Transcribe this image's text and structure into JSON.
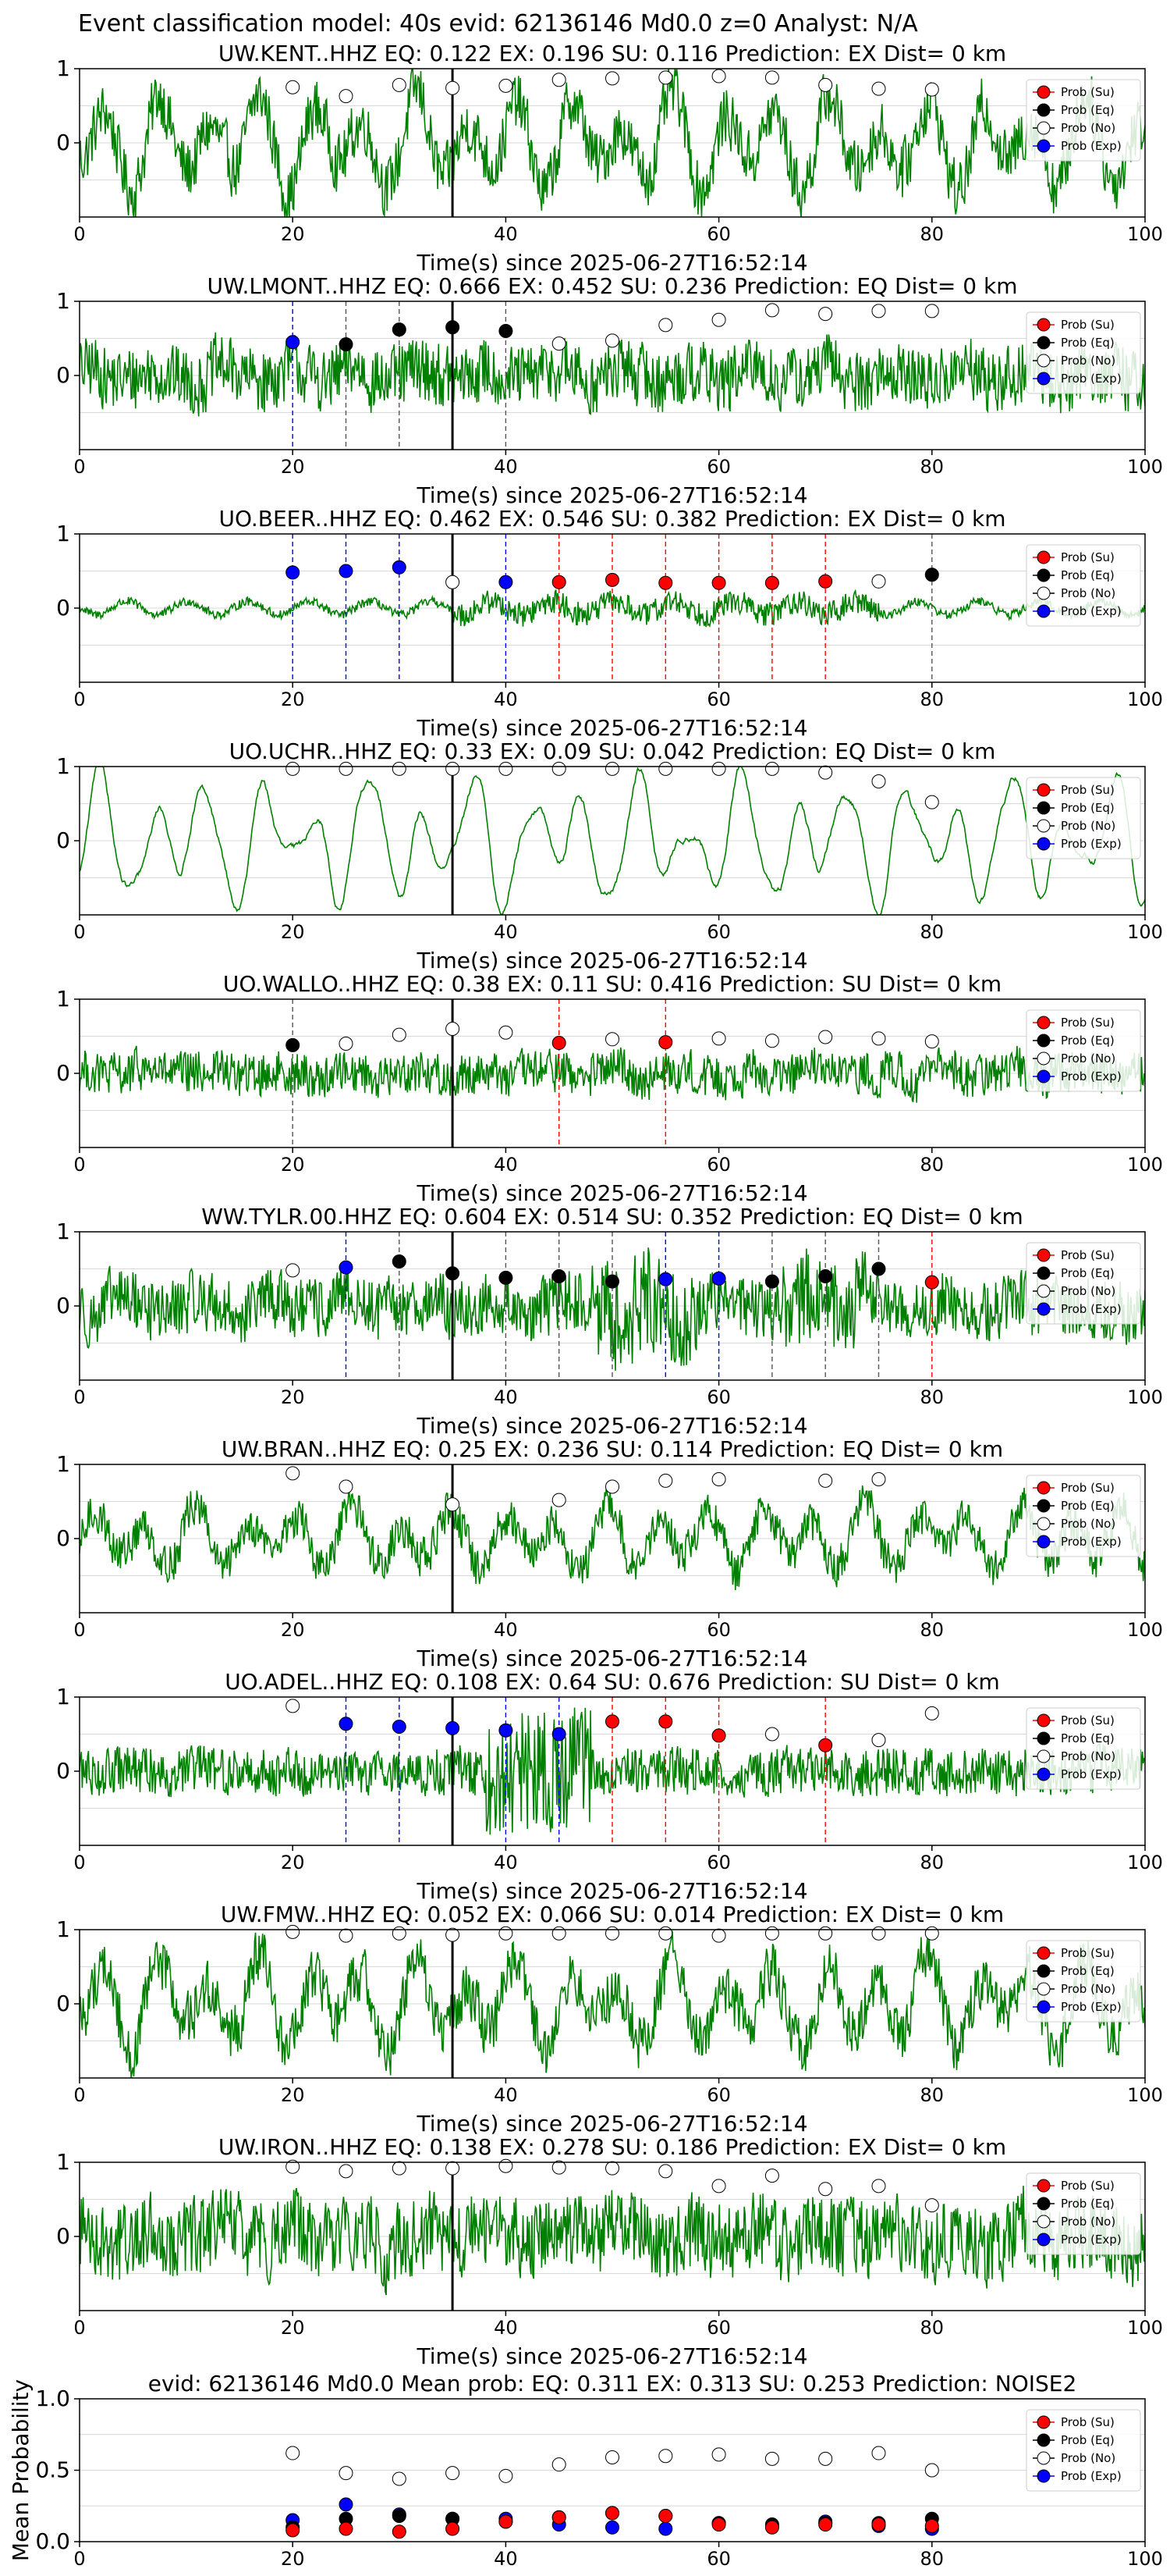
{
  "figure": {
    "suptitle": "Event classification model: 40s evid: 62136146 Md0.0 z=0 Analyst: N/A"
  },
  "legend_labels": [
    "Prob (Su)",
    "Prob (Eq)",
    "Prob (No)",
    "Prob (Exp)"
  ],
  "class_colors": {
    "su": "#ff0000",
    "eq": "#000000",
    "no": "#ffffff",
    "exp": "#0000ff"
  },
  "colors": {
    "waveform": "#008000",
    "pick_line": "#000000",
    "grid": "#d9d9d9"
  },
  "chart_data": [
    {
      "type": "line",
      "title": "UW.KENT..HHZ   EQ: 0.122  EX: 0.196  SU: 0.116   Prediction: EX    Dist= 0 km",
      "xlabel": "Time(s) since 2025-06-27T16:52:14",
      "xlim": [
        0,
        100
      ],
      "ylim": [
        -1,
        1
      ],
      "xticks": [
        0,
        20,
        40,
        60,
        80,
        100
      ],
      "yticks": [
        0,
        1
      ],
      "pick_time": 35,
      "waveform": {
        "style": "mixed",
        "amplitude": 0.8
      },
      "points": [
        {
          "x": 20,
          "y": 0.75,
          "c": "no"
        },
        {
          "x": 25,
          "y": 0.63,
          "c": "no"
        },
        {
          "x": 30,
          "y": 0.78,
          "c": "no"
        },
        {
          "x": 35,
          "y": 0.74,
          "c": "no"
        },
        {
          "x": 40,
          "y": 0.77,
          "c": "no"
        },
        {
          "x": 45,
          "y": 0.85,
          "c": "no"
        },
        {
          "x": 50,
          "y": 0.87,
          "c": "no"
        },
        {
          "x": 55,
          "y": 0.88,
          "c": "no"
        },
        {
          "x": 60,
          "y": 0.9,
          "c": "no"
        },
        {
          "x": 65,
          "y": 0.88,
          "c": "no"
        },
        {
          "x": 70,
          "y": 0.78,
          "c": "no"
        },
        {
          "x": 75,
          "y": 0.73,
          "c": "no"
        },
        {
          "x": 80,
          "y": 0.72,
          "c": "no"
        }
      ]
    },
    {
      "type": "line",
      "title": "UW.LMONT..HHZ   EQ: 0.666  EX: 0.452  SU: 0.236   Prediction: EQ    Dist= 0 km",
      "xlabel": "Time(s) since 2025-06-27T16:52:14",
      "xlim": [
        0,
        100
      ],
      "ylim": [
        -1,
        1
      ],
      "xticks": [
        0,
        20,
        40,
        60,
        80,
        100
      ],
      "yticks": [
        0,
        1
      ],
      "pick_time": 35,
      "waveform": {
        "style": "noisy",
        "amplitude": 0.45
      },
      "points": [
        {
          "x": 20,
          "y": 0.45,
          "c": "exp"
        },
        {
          "x": 25,
          "y": 0.42,
          "c": "eq"
        },
        {
          "x": 30,
          "y": 0.62,
          "c": "eq"
        },
        {
          "x": 35,
          "y": 0.65,
          "c": "eq"
        },
        {
          "x": 40,
          "y": 0.6,
          "c": "eq"
        },
        {
          "x": 45,
          "y": 0.43,
          "c": "no"
        },
        {
          "x": 50,
          "y": 0.47,
          "c": "no"
        },
        {
          "x": 55,
          "y": 0.68,
          "c": "no"
        },
        {
          "x": 60,
          "y": 0.75,
          "c": "no"
        },
        {
          "x": 65,
          "y": 0.88,
          "c": "no"
        },
        {
          "x": 70,
          "y": 0.83,
          "c": "no"
        },
        {
          "x": 75,
          "y": 0.87,
          "c": "no"
        },
        {
          "x": 80,
          "y": 0.87,
          "c": "no"
        }
      ]
    },
    {
      "type": "line",
      "title": "UO.BEER..HHZ   EQ: 0.462  EX: 0.546  SU: 0.382   Prediction: EX    Dist= 0 km",
      "xlabel": "Time(s) since 2025-06-27T16:52:14",
      "xlim": [
        0,
        100
      ],
      "ylim": [
        -1,
        1
      ],
      "xticks": [
        0,
        20,
        40,
        60,
        80,
        100
      ],
      "yticks": [
        0,
        1
      ],
      "pick_time": 35,
      "waveform": {
        "style": "quiet",
        "amplitude": 0.25
      },
      "points": [
        {
          "x": 20,
          "y": 0.48,
          "c": "exp"
        },
        {
          "x": 25,
          "y": 0.5,
          "c": "exp"
        },
        {
          "x": 30,
          "y": 0.55,
          "c": "exp"
        },
        {
          "x": 35,
          "y": 0.35,
          "c": "no"
        },
        {
          "x": 40,
          "y": 0.35,
          "c": "exp"
        },
        {
          "x": 45,
          "y": 0.35,
          "c": "su"
        },
        {
          "x": 50,
          "y": 0.38,
          "c": "su"
        },
        {
          "x": 55,
          "y": 0.34,
          "c": "su"
        },
        {
          "x": 60,
          "y": 0.34,
          "c": "su"
        },
        {
          "x": 65,
          "y": 0.34,
          "c": "su"
        },
        {
          "x": 70,
          "y": 0.36,
          "c": "su"
        },
        {
          "x": 75,
          "y": 0.36,
          "c": "no"
        },
        {
          "x": 80,
          "y": 0.45,
          "c": "eq"
        }
      ]
    },
    {
      "type": "line",
      "title": "UO.UCHR..HHZ   EQ: 0.33  EX: 0.09  SU: 0.042   Prediction: EQ    Dist= 0 km",
      "xlabel": "Time(s) since 2025-06-27T16:52:14",
      "xlim": [
        0,
        100
      ],
      "ylim": [
        -1,
        1
      ],
      "xticks": [
        0,
        20,
        40,
        60,
        80,
        100
      ],
      "yticks": [
        0,
        1
      ],
      "pick_time": 35,
      "waveform": {
        "style": "smooth",
        "amplitude": 0.85
      },
      "points": [
        {
          "x": 20,
          "y": 0.97,
          "c": "no"
        },
        {
          "x": 25,
          "y": 0.97,
          "c": "no"
        },
        {
          "x": 30,
          "y": 0.97,
          "c": "no"
        },
        {
          "x": 35,
          "y": 0.97,
          "c": "no"
        },
        {
          "x": 40,
          "y": 0.97,
          "c": "no"
        },
        {
          "x": 45,
          "y": 0.97,
          "c": "no"
        },
        {
          "x": 50,
          "y": 0.97,
          "c": "no"
        },
        {
          "x": 55,
          "y": 0.97,
          "c": "no"
        },
        {
          "x": 60,
          "y": 0.97,
          "c": "no"
        },
        {
          "x": 65,
          "y": 0.97,
          "c": "no"
        },
        {
          "x": 70,
          "y": 0.92,
          "c": "no"
        },
        {
          "x": 75,
          "y": 0.8,
          "c": "no"
        },
        {
          "x": 80,
          "y": 0.52,
          "c": "no"
        }
      ]
    },
    {
      "type": "line",
      "title": "UO.WALLO..HHZ   EQ: 0.38  EX: 0.11  SU: 0.416   Prediction: SU    Dist= 0 km",
      "xlabel": "Time(s) since 2025-06-27T16:52:14",
      "xlim": [
        0,
        100
      ],
      "ylim": [
        -1,
        1
      ],
      "xticks": [
        0,
        20,
        40,
        60,
        80,
        100
      ],
      "yticks": [
        0,
        1
      ],
      "pick_time": 35,
      "waveform": {
        "style": "noisy",
        "amplitude": 0.3
      },
      "points": [
        {
          "x": 20,
          "y": 0.38,
          "c": "eq"
        },
        {
          "x": 25,
          "y": 0.4,
          "c": "no"
        },
        {
          "x": 30,
          "y": 0.52,
          "c": "no"
        },
        {
          "x": 35,
          "y": 0.6,
          "c": "no"
        },
        {
          "x": 40,
          "y": 0.55,
          "c": "no"
        },
        {
          "x": 45,
          "y": 0.41,
          "c": "su"
        },
        {
          "x": 50,
          "y": 0.46,
          "c": "no"
        },
        {
          "x": 55,
          "y": 0.42,
          "c": "su"
        },
        {
          "x": 60,
          "y": 0.47,
          "c": "no"
        },
        {
          "x": 65,
          "y": 0.44,
          "c": "no"
        },
        {
          "x": 70,
          "y": 0.49,
          "c": "no"
        },
        {
          "x": 75,
          "y": 0.47,
          "c": "no"
        },
        {
          "x": 80,
          "y": 0.43,
          "c": "no"
        }
      ]
    },
    {
      "type": "line",
      "title": "WW.TYLR.00.HHZ   EQ: 0.604  EX: 0.514  SU: 0.352   Prediction: EQ    Dist= 0 km",
      "xlabel": "Time(s) since 2025-06-27T16:52:14",
      "xlim": [
        0,
        100
      ],
      "ylim": [
        -1,
        1
      ],
      "xticks": [
        0,
        20,
        40,
        60,
        80,
        100
      ],
      "yticks": [
        0,
        1
      ],
      "pick_time": 35,
      "waveform": {
        "style": "bursty",
        "amplitude": 0.5
      },
      "points": [
        {
          "x": 20,
          "y": 0.48,
          "c": "no"
        },
        {
          "x": 25,
          "y": 0.52,
          "c": "exp"
        },
        {
          "x": 30,
          "y": 0.6,
          "c": "eq"
        },
        {
          "x": 35,
          "y": 0.44,
          "c": "eq"
        },
        {
          "x": 40,
          "y": 0.38,
          "c": "eq"
        },
        {
          "x": 45,
          "y": 0.4,
          "c": "eq"
        },
        {
          "x": 50,
          "y": 0.33,
          "c": "eq"
        },
        {
          "x": 55,
          "y": 0.36,
          "c": "exp"
        },
        {
          "x": 60,
          "y": 0.37,
          "c": "exp"
        },
        {
          "x": 65,
          "y": 0.33,
          "c": "eq"
        },
        {
          "x": 70,
          "y": 0.4,
          "c": "eq"
        },
        {
          "x": 75,
          "y": 0.5,
          "c": "eq"
        },
        {
          "x": 80,
          "y": 0.32,
          "c": "su"
        }
      ]
    },
    {
      "type": "line",
      "title": "UW.BRAN..HHZ   EQ: 0.25  EX: 0.236  SU: 0.114   Prediction: EQ    Dist= 0 km",
      "xlabel": "Time(s) since 2025-06-27T16:52:14",
      "xlim": [
        0,
        100
      ],
      "ylim": [
        -1,
        1
      ],
      "xticks": [
        0,
        20,
        40,
        60,
        80,
        100
      ],
      "yticks": [
        0,
        1
      ],
      "pick_time": 35,
      "waveform": {
        "style": "mixed",
        "amplitude": 0.55
      },
      "points": [
        {
          "x": 20,
          "y": 0.88,
          "c": "no"
        },
        {
          "x": 25,
          "y": 0.7,
          "c": "no"
        },
        {
          "x": 35,
          "y": 0.46,
          "c": "no"
        },
        {
          "x": 45,
          "y": 0.52,
          "c": "no"
        },
        {
          "x": 50,
          "y": 0.7,
          "c": "no"
        },
        {
          "x": 55,
          "y": 0.78,
          "c": "no"
        },
        {
          "x": 60,
          "y": 0.8,
          "c": "no"
        },
        {
          "x": 70,
          "y": 0.78,
          "c": "no"
        },
        {
          "x": 75,
          "y": 0.8,
          "c": "no"
        }
      ]
    },
    {
      "type": "line",
      "title": "UO.ADEL..HHZ   EQ: 0.108  EX: 0.64  SU: 0.676   Prediction: SU    Dist= 0 km",
      "xlabel": "Time(s) since 2025-06-27T16:52:14",
      "xlim": [
        0,
        100
      ],
      "ylim": [
        -1,
        1
      ],
      "xticks": [
        0,
        20,
        40,
        60,
        80,
        100
      ],
      "yticks": [
        0,
        1
      ],
      "pick_time": 35,
      "waveform": {
        "style": "burst-center",
        "amplitude": 0.35
      },
      "points": [
        {
          "x": 20,
          "y": 0.88,
          "c": "no"
        },
        {
          "x": 25,
          "y": 0.64,
          "c": "exp"
        },
        {
          "x": 30,
          "y": 0.6,
          "c": "exp"
        },
        {
          "x": 35,
          "y": 0.58,
          "c": "exp"
        },
        {
          "x": 40,
          "y": 0.55,
          "c": "exp"
        },
        {
          "x": 45,
          "y": 0.5,
          "c": "exp"
        },
        {
          "x": 50,
          "y": 0.67,
          "c": "su"
        },
        {
          "x": 55,
          "y": 0.67,
          "c": "su"
        },
        {
          "x": 60,
          "y": 0.48,
          "c": "su"
        },
        {
          "x": 65,
          "y": 0.5,
          "c": "no"
        },
        {
          "x": 70,
          "y": 0.35,
          "c": "su"
        },
        {
          "x": 75,
          "y": 0.42,
          "c": "no"
        },
        {
          "x": 80,
          "y": 0.78,
          "c": "no"
        }
      ]
    },
    {
      "type": "line",
      "title": "UW.FMW..HHZ   EQ: 0.052  EX: 0.066  SU: 0.014   Prediction: EX    Dist= 0 km",
      "xlabel": "Time(s) since 2025-06-27T16:52:14",
      "xlim": [
        0,
        100
      ],
      "ylim": [
        -1,
        1
      ],
      "xticks": [
        0,
        20,
        40,
        60,
        80,
        100
      ],
      "yticks": [
        0,
        1
      ],
      "pick_time": 35,
      "waveform": {
        "style": "mixed",
        "amplitude": 0.75
      },
      "points": [
        {
          "x": 20,
          "y": 0.97,
          "c": "no"
        },
        {
          "x": 25,
          "y": 0.92,
          "c": "no"
        },
        {
          "x": 30,
          "y": 0.95,
          "c": "no"
        },
        {
          "x": 35,
          "y": 0.93,
          "c": "no"
        },
        {
          "x": 40,
          "y": 0.95,
          "c": "no"
        },
        {
          "x": 45,
          "y": 0.95,
          "c": "no"
        },
        {
          "x": 50,
          "y": 0.95,
          "c": "no"
        },
        {
          "x": 55,
          "y": 0.95,
          "c": "no"
        },
        {
          "x": 60,
          "y": 0.92,
          "c": "no"
        },
        {
          "x": 65,
          "y": 0.95,
          "c": "no"
        },
        {
          "x": 70,
          "y": 0.95,
          "c": "no"
        },
        {
          "x": 75,
          "y": 0.95,
          "c": "no"
        },
        {
          "x": 80,
          "y": 0.95,
          "c": "no"
        }
      ]
    },
    {
      "type": "line",
      "title": "UW.IRON..HHZ   EQ: 0.138  EX: 0.278  SU: 0.186   Prediction: EX    Dist= 0 km",
      "xlabel": "Time(s) since 2025-06-27T16:52:14",
      "xlim": [
        0,
        100
      ],
      "ylim": [
        -1,
        1
      ],
      "xticks": [
        0,
        20,
        40,
        60,
        80,
        100
      ],
      "yticks": [
        0,
        1
      ],
      "pick_time": 35,
      "waveform": {
        "style": "noisy",
        "amplitude": 0.55
      },
      "points": [
        {
          "x": 20,
          "y": 0.94,
          "c": "no"
        },
        {
          "x": 25,
          "y": 0.88,
          "c": "no"
        },
        {
          "x": 30,
          "y": 0.92,
          "c": "no"
        },
        {
          "x": 35,
          "y": 0.92,
          "c": "no"
        },
        {
          "x": 40,
          "y": 0.95,
          "c": "no"
        },
        {
          "x": 45,
          "y": 0.93,
          "c": "no"
        },
        {
          "x": 50,
          "y": 0.92,
          "c": "no"
        },
        {
          "x": 55,
          "y": 0.88,
          "c": "no"
        },
        {
          "x": 60,
          "y": 0.68,
          "c": "no"
        },
        {
          "x": 65,
          "y": 0.82,
          "c": "no"
        },
        {
          "x": 70,
          "y": 0.64,
          "c": "no"
        },
        {
          "x": 75,
          "y": 0.68,
          "c": "no"
        },
        {
          "x": 80,
          "y": 0.42,
          "c": "no"
        }
      ]
    },
    {
      "type": "scatter",
      "title": "evid: 62136146  Md0.0   Mean prob:   EQ: 0.311  EX: 0.313  SU: 0.253   Prediction: NOISE2",
      "xlabel": "",
      "ylabel": "Mean Probability",
      "xlim": [
        0,
        100
      ],
      "ylim": [
        0,
        1
      ],
      "xticks": [
        0,
        20,
        40,
        60,
        80,
        100
      ],
      "yticks": [
        0.0,
        0.5,
        1.0
      ],
      "ytick_labels": [
        "0.0",
        "0.5",
        "1.0"
      ],
      "x": [
        20,
        25,
        30,
        35,
        40,
        45,
        50,
        55,
        60,
        65,
        70,
        75,
        80
      ],
      "series": [
        {
          "name": "Prob (No)",
          "class": "no",
          "values": [
            0.62,
            0.48,
            0.44,
            0.48,
            0.46,
            0.54,
            0.59,
            0.6,
            0.61,
            0.58,
            0.58,
            0.62,
            0.5
          ]
        },
        {
          "name": "Prob (Exp)",
          "class": "exp",
          "values": [
            0.15,
            0.26,
            0.19,
            0.16,
            0.16,
            0.12,
            0.1,
            0.09,
            0.13,
            0.11,
            0.14,
            0.11,
            0.09
          ]
        },
        {
          "name": "Prob (Eq)",
          "class": "eq",
          "values": [
            0.1,
            0.16,
            0.18,
            0.16,
            0.14,
            0.17,
            0.2,
            0.18,
            0.13,
            0.12,
            0.13,
            0.13,
            0.16
          ]
        },
        {
          "name": "Prob (Su)",
          "class": "su",
          "values": [
            0.08,
            0.09,
            0.07,
            0.09,
            0.14,
            0.17,
            0.2,
            0.18,
            0.12,
            0.1,
            0.12,
            0.12,
            0.11
          ]
        }
      ]
    }
  ]
}
